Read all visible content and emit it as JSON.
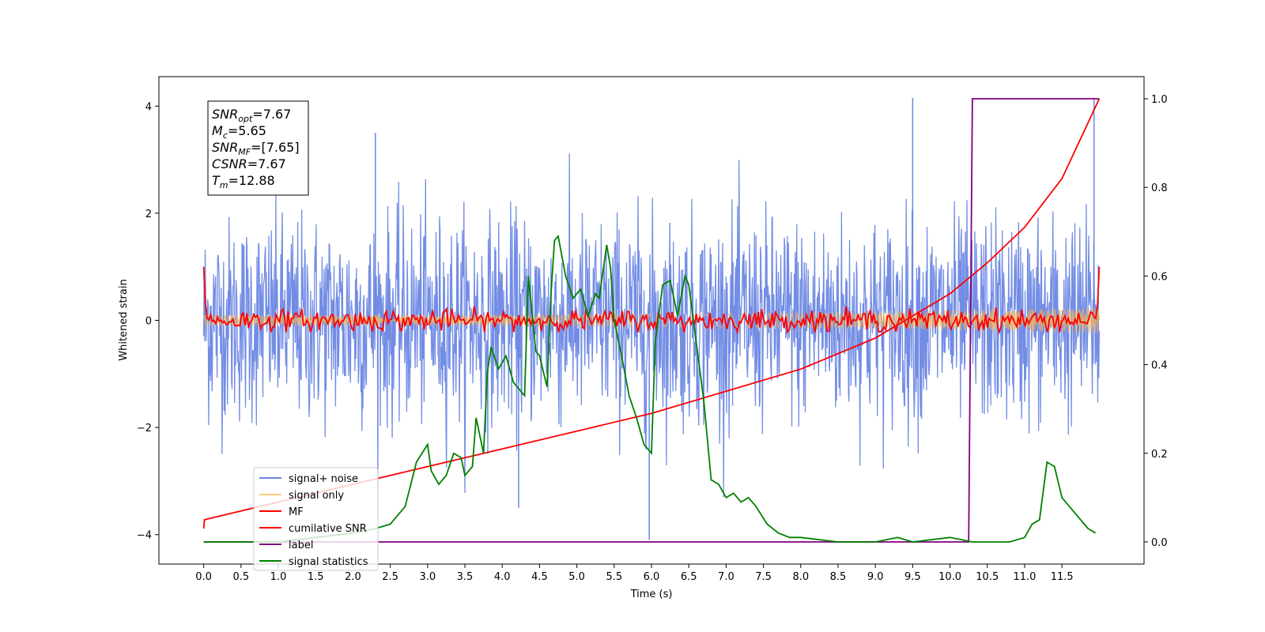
{
  "chart_data": {
    "type": "line",
    "xlabel": "Time (s)",
    "ylabel_left": "Whitened strain",
    "ylabel_right": "",
    "xlim": [
      -0.6,
      12.6
    ],
    "ylim_left": [
      -4.55,
      4.55
    ],
    "ylim_right": [
      -0.05,
      1.05
    ],
    "x_ticks": [
      0.0,
      0.5,
      1.0,
      1.5,
      2.0,
      2.5,
      3.0,
      3.5,
      4.0,
      4.5,
      5.0,
      5.5,
      6.0,
      6.5,
      7.0,
      7.5,
      8.0,
      8.5,
      9.0,
      9.5,
      10.0,
      10.5,
      11.0,
      11.5
    ],
    "x_tick_labels": [
      "0.0",
      "0.5",
      "1.0",
      "1.5",
      "2.0",
      "2.5",
      "3.0",
      "3.5",
      "4.0",
      "4.5",
      "5.0",
      "5.5",
      "6.0",
      "6.5",
      "7.0",
      "7.5",
      "8.0",
      "8.5",
      "9.0",
      "9.5",
      "10.0",
      "10.5",
      "11.0",
      "11.5"
    ],
    "y_ticks_left": [
      -4,
      -2,
      0,
      2,
      4
    ],
    "y_tick_labels_left": [
      "−4",
      "−2",
      "0",
      "2",
      "4"
    ],
    "y_ticks_right": [
      0.0,
      0.2,
      0.4,
      0.6,
      0.8,
      1.0
    ],
    "y_tick_labels_right": [
      "0.0",
      "0.2",
      "0.4",
      "0.6",
      "0.8",
      "1.0"
    ],
    "grid": false,
    "legend_position": "lower-left",
    "annotation": {
      "lines": [
        {
          "var": "SNR",
          "sub": "opt",
          "value": "=7.67"
        },
        {
          "var": "M",
          "sub": "c",
          "value": "=5.65"
        },
        {
          "var": "SNR",
          "sub": "MF",
          "value": "=[7.65]"
        },
        {
          "var": "CSNR",
          "sub": "",
          "value": "=7.67"
        },
        {
          "var": "T",
          "sub": "m",
          "value": "=12.88"
        }
      ]
    },
    "series": [
      {
        "name": "signal+ noise",
        "axis": "left",
        "color": "#6b87e4",
        "kind": "noise-band",
        "t_start": 0.0,
        "t_end": 12.0,
        "typical_range": [
          -2.4,
          2.4
        ],
        "extreme_points": [
          {
            "x": 5.97,
            "y": -4.1
          },
          {
            "x": 9.5,
            "y": 4.15
          },
          {
            "x": 11.93,
            "y": 4.15
          },
          {
            "x": 2.3,
            "y": 3.5
          },
          {
            "x": 4.22,
            "y": -3.5
          }
        ]
      },
      {
        "name": "signal only",
        "axis": "left",
        "color": "#ffb347",
        "kind": "chirp",
        "t_start": 0.0,
        "t_end": 12.0,
        "amplitude_start": 0.1,
        "amplitude_end": 0.25
      },
      {
        "name": "MF",
        "axis": "left",
        "color": "#ff0000",
        "kind": "noise-line",
        "t_start": 0.0,
        "t_end": 12.0,
        "typical_range": [
          -0.2,
          0.35
        ],
        "endpoints": [
          1.0,
          1.0
        ]
      },
      {
        "name": "cumilative SNR",
        "axis": "right",
        "color": "#ff0000",
        "x": [
          0.0,
          0.01,
          1.0,
          2.0,
          3.0,
          4.0,
          5.0,
          6.0,
          7.0,
          8.0,
          9.0,
          10.0,
          10.5,
          11.0,
          11.5,
          12.0
        ],
        "y": [
          0.03,
          0.05,
          0.09,
          0.13,
          0.17,
          0.21,
          0.25,
          0.29,
          0.34,
          0.39,
          0.46,
          0.56,
          0.63,
          0.71,
          0.82,
          1.0
        ]
      },
      {
        "name": "label",
        "axis": "right",
        "color": "#800080",
        "x": [
          0.0,
          10.25,
          10.3,
          12.0
        ],
        "y": [
          0.0,
          0.0,
          1.0,
          1.0
        ]
      },
      {
        "name": "signal statistics",
        "axis": "right",
        "color": "#008000",
        "x": [
          0.0,
          0.5,
          1.0,
          1.5,
          2.0,
          2.3,
          2.5,
          2.7,
          2.85,
          3.0,
          3.05,
          3.15,
          3.25,
          3.35,
          3.45,
          3.5,
          3.6,
          3.65,
          3.75,
          3.8,
          3.85,
          3.95,
          4.05,
          4.15,
          4.3,
          4.35,
          4.45,
          4.5,
          4.6,
          4.65,
          4.7,
          4.75,
          4.85,
          4.95,
          5.05,
          5.15,
          5.25,
          5.3,
          5.4,
          5.45,
          5.5,
          5.6,
          5.7,
          5.8,
          5.9,
          6.0,
          6.05,
          6.15,
          6.25,
          6.35,
          6.45,
          6.5,
          6.6,
          6.7,
          6.8,
          6.9,
          7.0,
          7.1,
          7.2,
          7.3,
          7.4,
          7.55,
          7.7,
          7.85,
          8.0,
          8.5,
          9.0,
          9.3,
          9.5,
          10.0,
          10.3,
          10.5,
          10.8,
          11.0,
          11.1,
          11.2,
          11.3,
          11.4,
          11.5,
          11.6,
          11.7,
          11.8,
          11.85,
          11.95
        ],
        "y": [
          0.0,
          0.0,
          0.0,
          0.01,
          0.02,
          0.03,
          0.04,
          0.08,
          0.18,
          0.22,
          0.16,
          0.13,
          0.15,
          0.2,
          0.19,
          0.15,
          0.17,
          0.28,
          0.2,
          0.38,
          0.44,
          0.39,
          0.42,
          0.36,
          0.33,
          0.6,
          0.43,
          0.42,
          0.35,
          0.55,
          0.68,
          0.69,
          0.6,
          0.55,
          0.57,
          0.51,
          0.56,
          0.55,
          0.67,
          0.62,
          0.5,
          0.42,
          0.33,
          0.28,
          0.22,
          0.2,
          0.45,
          0.58,
          0.59,
          0.51,
          0.6,
          0.58,
          0.45,
          0.32,
          0.14,
          0.13,
          0.1,
          0.11,
          0.09,
          0.1,
          0.08,
          0.04,
          0.02,
          0.01,
          0.01,
          0.0,
          0.0,
          0.01,
          0.0,
          0.01,
          0.0,
          0.0,
          0.0,
          0.01,
          0.04,
          0.05,
          0.18,
          0.17,
          0.1,
          0.08,
          0.06,
          0.04,
          0.03,
          0.02
        ]
      }
    ]
  }
}
